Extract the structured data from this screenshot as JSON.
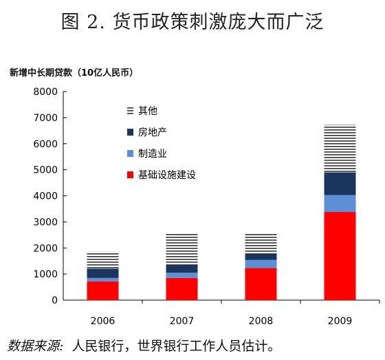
{
  "title": "图 2. 货币政策刺激庞大而广泛",
  "source": {
    "label": "数据来源:",
    "text": "人民银行，世界银行工作人员估计。"
  },
  "chart_data": {
    "type": "bar",
    "stacked": true,
    "title": "图 2. 货币政策刺激庞大而广泛",
    "ylabel": "新增中长期贷款（10亿人民币）",
    "xlabel": "",
    "categories": [
      "2006",
      "2007",
      "2008",
      "2009"
    ],
    "ylim": [
      0,
      8000
    ],
    "yticks": [
      0,
      1000,
      2000,
      3000,
      4000,
      5000,
      6000,
      7000,
      8000
    ],
    "grid": false,
    "legend": "top-left inside",
    "series": [
      {
        "name": "基础设施建设",
        "values": [
          720,
          850,
          1230,
          3380
        ],
        "color": "#ff0000",
        "pattern": "solid"
      },
      {
        "name": "制造业",
        "values": [
          130,
          200,
          310,
          650
        ],
        "color": "#5b8fd6",
        "pattern": "solid"
      },
      {
        "name": "房地产",
        "values": [
          360,
          300,
          230,
          870
        ],
        "color": "#1a355e",
        "pattern": "solid"
      },
      {
        "name": "其他",
        "values": [
          650,
          1200,
          770,
          1830
        ],
        "color": "#333333",
        "pattern": "horizontal-stripes"
      }
    ],
    "legend_order": [
      "其他",
      "房地产",
      "制造业",
      "基础设施建设"
    ]
  }
}
